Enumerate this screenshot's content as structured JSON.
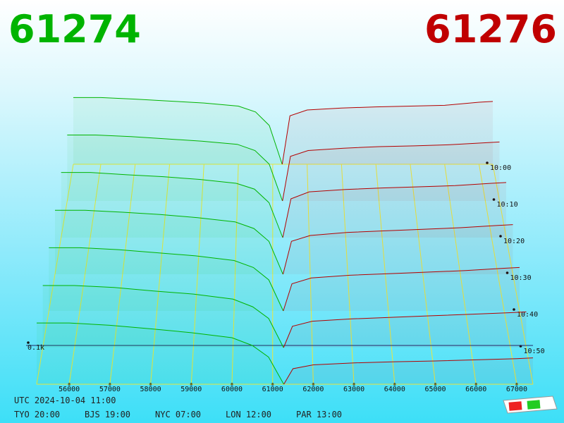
{
  "chart_data": {
    "type": "depth3d",
    "bid_price": 61274,
    "ask_price": 61276,
    "xlim": [
      55200,
      67400
    ],
    "xticks": [
      56000,
      57000,
      58000,
      59000,
      60000,
      61000,
      62000,
      63000,
      64000,
      65000,
      66000,
      67000
    ],
    "tlim": [
      600,
      660
    ],
    "tticks": [
      {
        "value": 600,
        "label": "10:00"
      },
      {
        "value": 610,
        "label": "10:10"
      },
      {
        "value": 620,
        "label": "10:20"
      },
      {
        "value": 630,
        "label": "10:30"
      },
      {
        "value": 640,
        "label": "10:40"
      },
      {
        "value": 650,
        "label": "10:50"
      }
    ],
    "zlim": [
      0,
      300
    ],
    "zticks": [
      {
        "value": 100,
        "label": "0.1k"
      }
    ],
    "bids": {
      "color": "#00b400",
      "prices": [
        55200,
        56000,
        57000,
        58000,
        59000,
        60000,
        60500,
        60900,
        61274
      ],
      "snapshots": [
        {
          "t": 600,
          "sizes": [
            172,
            172,
            168,
            163,
            158,
            150,
            135,
            100,
            0
          ]
        },
        {
          "t": 610,
          "sizes": [
            170,
            170,
            166,
            160,
            154,
            146,
            130,
            95,
            0
          ]
        },
        {
          "t": 620,
          "sizes": [
            168,
            168,
            162,
            157,
            150,
            140,
            125,
            90,
            0
          ]
        },
        {
          "t": 630,
          "sizes": [
            165,
            165,
            160,
            154,
            146,
            135,
            118,
            85,
            0
          ]
        },
        {
          "t": 640,
          "sizes": [
            163,
            163,
            158,
            150,
            142,
            130,
            112,
            80,
            0
          ]
        },
        {
          "t": 650,
          "sizes": [
            160,
            160,
            155,
            146,
            138,
            125,
            105,
            75,
            0
          ]
        },
        {
          "t": 660,
          "sizes": [
            158,
            158,
            152,
            143,
            133,
            120,
            100,
            70,
            0
          ]
        }
      ]
    },
    "asks": {
      "color": "#b40000",
      "prices": [
        61276,
        61500,
        62000,
        63000,
        64000,
        65000,
        66000,
        67000,
        67400
      ],
      "snapshots": [
        {
          "t": 600,
          "sizes": [
            0,
            125,
            140,
            145,
            148,
            150,
            152,
            160,
            162
          ]
        },
        {
          "t": 610,
          "sizes": [
            0,
            115,
            130,
            136,
            140,
            142,
            145,
            150,
            152
          ]
        },
        {
          "t": 620,
          "sizes": [
            0,
            100,
            118,
            124,
            128,
            131,
            134,
            140,
            142
          ]
        },
        {
          "t": 630,
          "sizes": [
            0,
            85,
            100,
            108,
            112,
            116,
            120,
            126,
            128
          ]
        },
        {
          "t": 640,
          "sizes": [
            0,
            70,
            85,
            92,
            96,
            100,
            104,
            110,
            112
          ]
        },
        {
          "t": 650,
          "sizes": [
            0,
            55,
            68,
            74,
            78,
            82,
            86,
            90,
            92
          ]
        },
        {
          "t": 660,
          "sizes": [
            0,
            40,
            50,
            55,
            58,
            60,
            63,
            66,
            68
          ]
        }
      ]
    }
  },
  "footer": {
    "utc": "UTC 2024-10-04 11:00",
    "cities": [
      "TYO 20:00",
      "BJS 19:00",
      "NYC 07:00",
      "LON 12:00",
      "PAR 13:00"
    ]
  }
}
